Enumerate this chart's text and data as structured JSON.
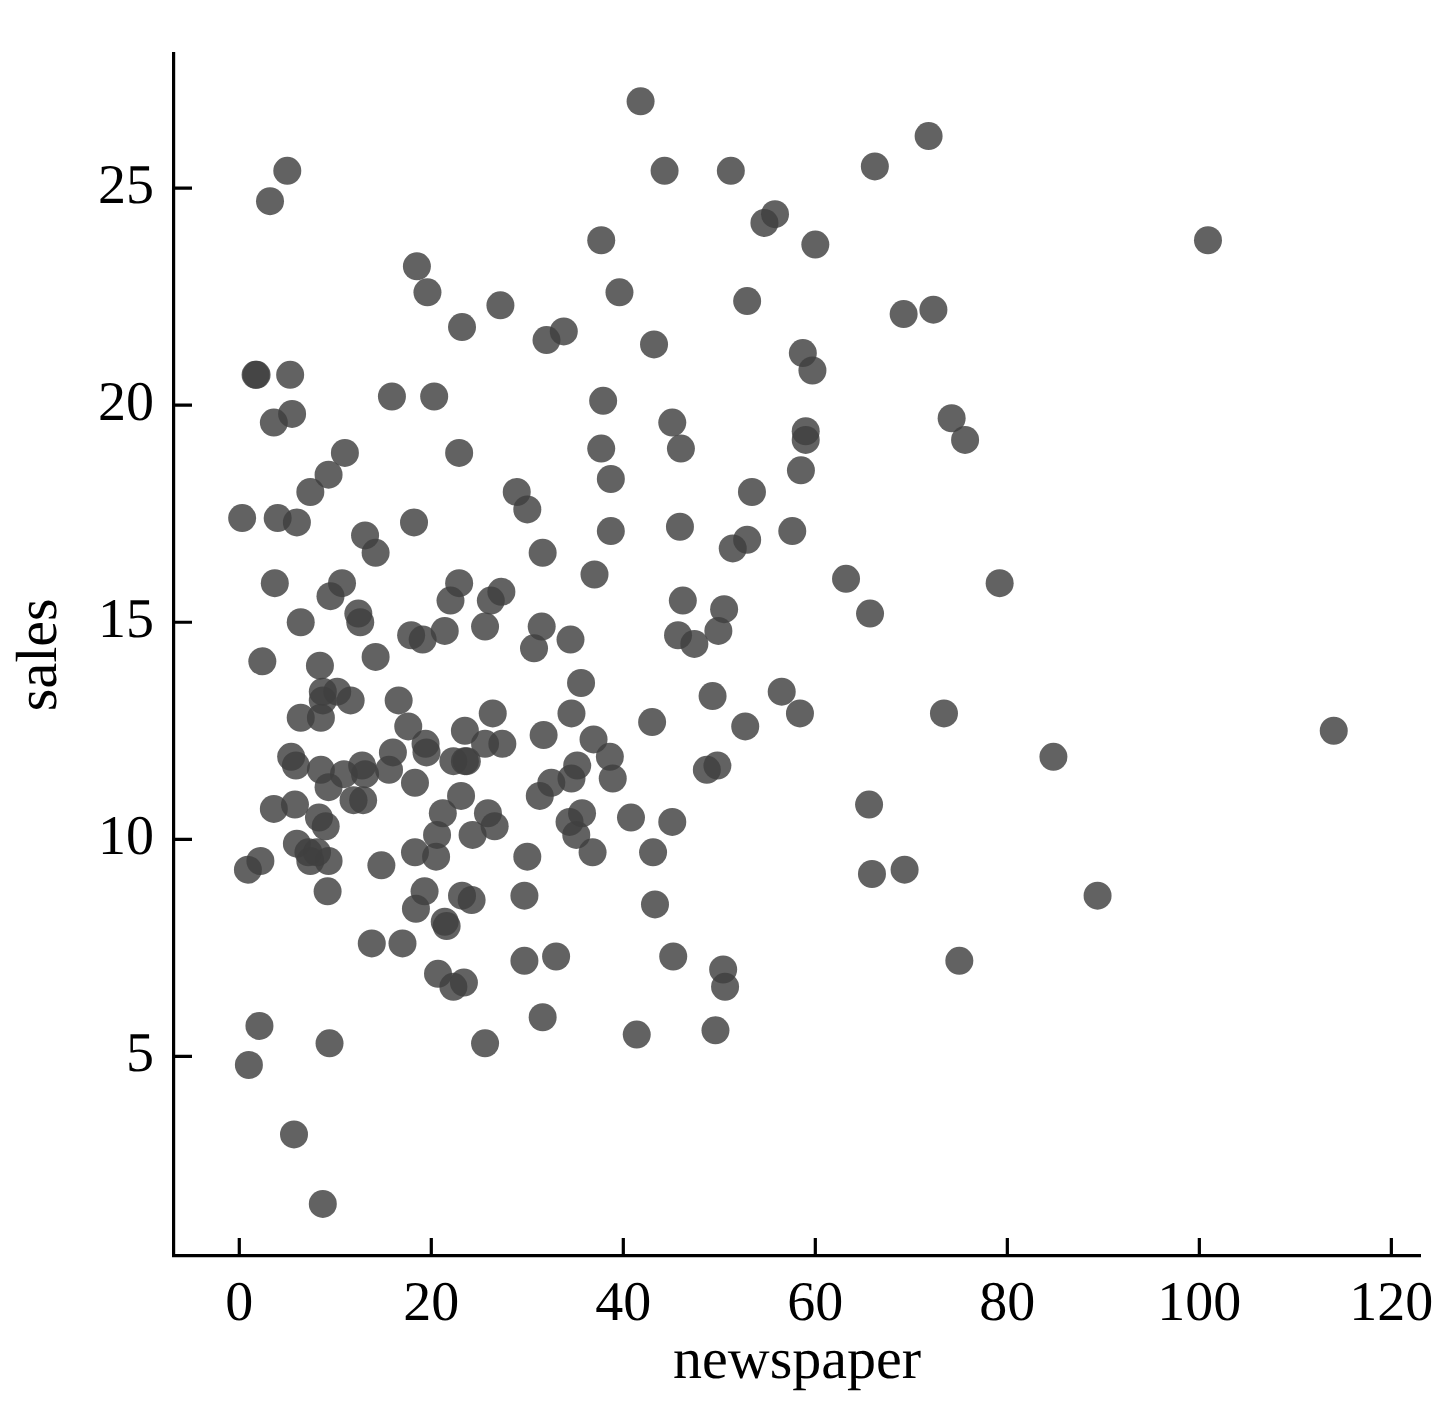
{
  "chart_data": {
    "type": "scatter",
    "xlabel": "newspaper",
    "ylabel": "sales",
    "color": "#404040",
    "marker": "circle",
    "grid": false,
    "legend": false,
    "xlim": [
      -6.8,
      123
    ],
    "ylim": [
      0.4,
      28.1
    ],
    "xticks": [
      0,
      20,
      40,
      60,
      80,
      100,
      120
    ],
    "yticks": [
      5,
      10,
      15,
      20,
      25
    ],
    "x": [
      69.2,
      45.1,
      69.3,
      58.5,
      58.4,
      75,
      23.5,
      11.6,
      1,
      21.2,
      24.2,
      4,
      65.9,
      7.2,
      46,
      52.9,
      114,
      55.8,
      18.3,
      19.1,
      53.4,
      23.5,
      49.6,
      26.2,
      18.3,
      19.5,
      12.6,
      22.9,
      22.9,
      40.8,
      43.2,
      38.6,
      30,
      0.3,
      7.4,
      8.5,
      5,
      45.7,
      35.1,
      32,
      31.6,
      38.7,
      1.8,
      26.4,
      43.3,
      31.5,
      35.7,
      18.5,
      49.9,
      36.8,
      34.6,
      3.6,
      39.6,
      58.7,
      15.9,
      60,
      41.4,
      16.6,
      37.7,
      9.3,
      21.4,
      54.7,
      27.3,
      8.4,
      28.9,
      0.9,
      2.2,
      10.2,
      11,
      27.2,
      38.7,
      31.7,
      19.3,
      31.3,
      13.1,
      89.4,
      20.7,
      14.2,
      9.4,
      23.1,
      22.3,
      36.9,
      32.5,
      35.6,
      33.8,
      65.7,
      16,
      63.2,
      73.4,
      51.4,
      9.3,
      33,
      59,
      72.3,
      10.9,
      52.9,
      5.9,
      22,
      51.2,
      45.9,
      49.8,
      100.9,
      21.4,
      17.9,
      5.3,
      59,
      29.7,
      23.2,
      25.6,
      5.5,
      56.5,
      23.2,
      2.4,
      10.7,
      34.5,
      52.7,
      25.6,
      14.8,
      79.2,
      22.3,
      46.2,
      50.4,
      15.6,
      12.4,
      74.2,
      25.9,
      50.6,
      9.2,
      3.2,
      43.1,
      8.7,
      43,
      2.1,
      45.1,
      65.6,
      8.5,
      9.3,
      59.7,
      20.5,
      1.7,
      12.9,
      75.6,
      37.9,
      34.4,
      38.9,
      9,
      8.7,
      44.3,
      11.9,
      20.6,
      37,
      48.7,
      14.2,
      37.7,
      9.5,
      5.7,
      50.5,
      24.3,
      45.2,
      34.6,
      30.7,
      49.3,
      25.6,
      7.4,
      5.4,
      84.8,
      21.6,
      19.4,
      57.6,
      6.4,
      18.4,
      47.4,
      17,
      12.8,
      13.1,
      41.8,
      20.3,
      35.2,
      23.7,
      17.6,
      8.3,
      27.4,
      29.7,
      71.8,
      30,
      19.6,
      26.6,
      18.2,
      3.7,
      23.4,
      5.8,
      6,
      31.6,
      3.6,
      6,
      13.8,
      8.1,
      6.4,
      66.2,
      8.7
    ],
    "values": [
      22.1,
      10.4,
      9.3,
      18.5,
      12.9,
      7.2,
      11.8,
      13.2,
      4.8,
      10.6,
      8.6,
      17.4,
      9.2,
      9.7,
      19,
      22.4,
      12.5,
      24.4,
      11.3,
      14.6,
      18,
      12.5,
      5.6,
      15.5,
      9.7,
      12,
      15,
      15.9,
      18.9,
      10.5,
      21.4,
      11.9,
      9.6,
      17.4,
      9.5,
      12.8,
      25.4,
      14.7,
      10.1,
      21.5,
      16.6,
      17.1,
      20.7,
      12.9,
      8.5,
      14.9,
      10.6,
      23.2,
      14.8,
      9.7,
      11.4,
      10.7,
      22.6,
      21.2,
      20.2,
      23.7,
      5.5,
      13.2,
      23.8,
      18.4,
      8.1,
      24.2,
      15.7,
      14,
      18,
      9.3,
      9.5,
      13.4,
      18.9,
      22.3,
      18.3,
      12.4,
      8.8,
      11,
      17,
      8.7,
      6.9,
      14.2,
      5.3,
      11,
      11.8,
      12.3,
      11.3,
      13.6,
      21.7,
      15.2,
      12,
      16,
      12.9,
      16.7,
      11.2,
      7.3,
      19.4,
      22.2,
      11.5,
      16.9,
      11.7,
      15.5,
      25.4,
      17.2,
      11.7,
      23.8,
      14.8,
      14.7,
      20.7,
      19.2,
      7.2,
      8.7,
      5.3,
      19.8,
      13.4,
      21.8,
      14.1,
      15.9,
      14.6,
      12.6,
      12.2,
      9.4,
      15.9,
      6.6,
      15.5,
      7,
      11.6,
      15.2,
      19.7,
      10.6,
      6.6,
      8.8,
      24.7,
      9.7,
      1.6,
      12.7,
      5.7,
      19.6,
      10.8,
      11.6,
      9.5,
      20.8,
      9.6,
      20.7,
      10.9,
      19.2,
      20.1,
      10.4,
      11.4,
      10.3,
      13.2,
      25.4,
      10.9,
      10.1,
      16.1,
      11.6,
      16.6,
      19,
      15.6,
      3.2,
      15.3,
      10.1,
      7.3,
      12.9,
      14.4,
      13.3,
      14.9,
      18,
      11.9,
      11.9,
      8,
      12.2,
      17.1,
      15,
      8.4,
      14.5,
      7.6,
      11.7,
      11.5,
      27,
      20.2,
      11.7,
      11.8,
      12.6,
      10.5,
      12.2,
      8.7,
      26.2,
      17.6,
      22.6,
      10.3,
      17.3,
      15.9,
      6.7,
      10.8,
      9.9,
      5.9,
      19.6,
      17.3,
      7.6,
      9.7,
      12.8,
      25.5,
      13.4
    ]
  }
}
